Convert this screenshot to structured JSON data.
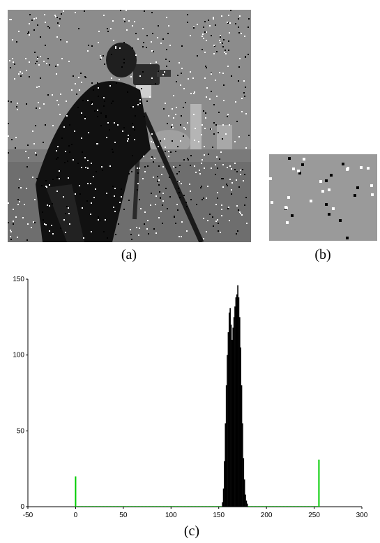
{
  "captions": {
    "a": "(a)",
    "b": "(b)",
    "c": "(c)"
  },
  "images": {
    "a": {
      "subject": "noisy-cameraman-photo"
    },
    "b": {
      "subject": "noisy-gray-patch"
    }
  },
  "colors": {
    "histogram_bars": "#000000",
    "impulse_lines": "#00cc00",
    "photo_bg": "#8a8a8a",
    "patch_bg": "#9a9a9a"
  },
  "chart_data": {
    "type": "bar",
    "title": "",
    "xlabel": "",
    "ylabel": "",
    "xlim": [
      -50,
      300
    ],
    "ylim": [
      0,
      150
    ],
    "xticks": [
      -50,
      0,
      50,
      100,
      150,
      200,
      250,
      300
    ],
    "yticks": [
      0,
      50,
      100,
      150
    ],
    "series": [
      {
        "color": "#000000",
        "x": [
          154,
          155,
          156,
          157,
          158,
          159,
          160,
          161,
          162,
          163,
          164,
          165,
          166,
          167,
          168,
          169,
          170,
          171,
          172,
          173,
          174,
          175,
          176,
          177,
          178,
          179,
          180
        ],
        "values": [
          3,
          12,
          30,
          55,
          80,
          100,
          115,
          128,
          131,
          120,
          110,
          118,
          125,
          132,
          138,
          140,
          146,
          138,
          125,
          105,
          80,
          55,
          32,
          18,
          8,
          4,
          2
        ]
      },
      {
        "color": "#00cc00",
        "x": [
          0,
          255
        ],
        "values": [
          20,
          31
        ]
      }
    ]
  }
}
